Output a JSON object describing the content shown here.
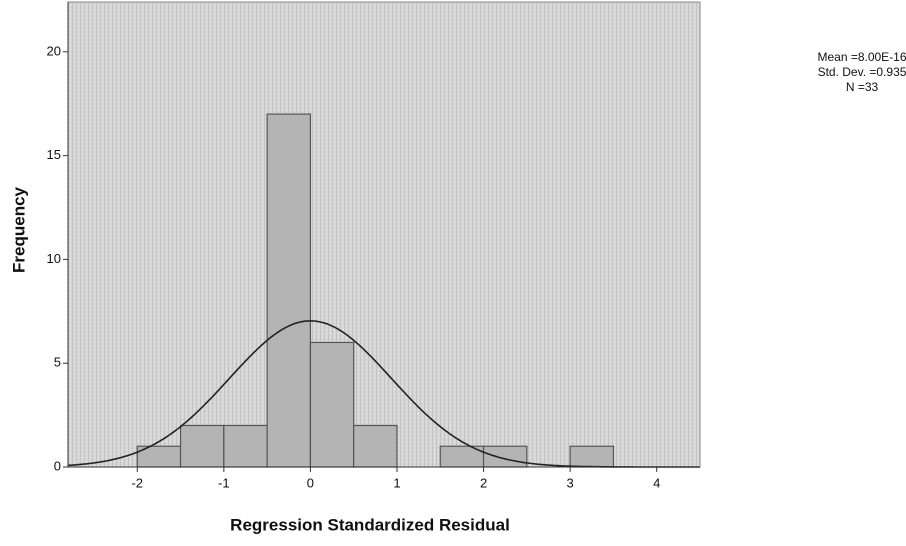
{
  "chart_data": {
    "type": "histogram",
    "xlabel": "Regression Standardized Residual",
    "ylabel": "Frequency",
    "bins": [
      -2,
      -1.5,
      -1,
      -0.5,
      0,
      0.5,
      1,
      1.5,
      2,
      2.5,
      3,
      3.5
    ],
    "counts": [
      1,
      2,
      2,
      17,
      6,
      2,
      0,
      1,
      1,
      0,
      1
    ],
    "color": "#b4b4b4",
    "xlim": [
      -2.8,
      4.5
    ],
    "ylim": [
      0,
      22.4
    ],
    "xticks": [
      -2,
      -1,
      0,
      1,
      2,
      3,
      4
    ],
    "yticks": [
      0,
      5,
      10,
      15,
      20
    ],
    "stats": [
      {
        "label": "Mean =8.00E-16",
        "value": 8e-16
      },
      {
        "label": "Std. Dev. =0.935",
        "value": 0.935
      },
      {
        "label": "N =33",
        "value": 33
      }
    ],
    "normal_curve": true
  }
}
